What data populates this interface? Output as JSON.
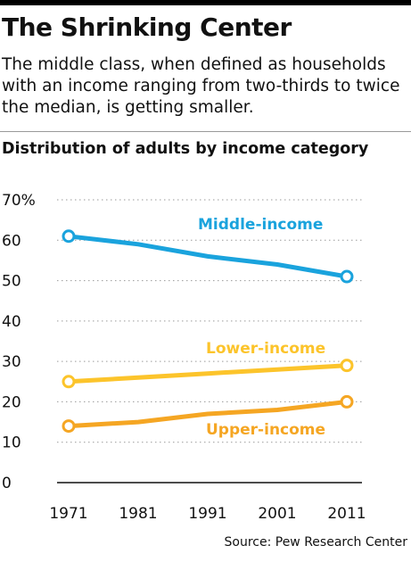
{
  "title": "The Shrinking Center",
  "subtitle": "The middle class, when defined as households with an income ranging from two-thirds to twice the median, is getting smaller.",
  "chart_title": "Distribution of adults by income category",
  "source": "Source: Pew Research Center",
  "chart_data": {
    "type": "line",
    "x": [
      1971,
      1981,
      1991,
      2001,
      2011
    ],
    "x_tick_labels": [
      "1971",
      "1981",
      "1991",
      "2001",
      "2011"
    ],
    "y_tick_labels": [
      "0",
      "10",
      "20",
      "30",
      "40",
      "50",
      "60",
      "70%"
    ],
    "y_ticks": [
      0,
      10,
      20,
      30,
      40,
      50,
      60,
      70
    ],
    "ylim": [
      0,
      70
    ],
    "grid": "dotted horizontal",
    "series": [
      {
        "name": "Middle-income",
        "values": [
          61,
          59,
          56,
          54,
          51
        ],
        "color": "#1aa3dd"
      },
      {
        "name": "Lower-income",
        "values": [
          25,
          26,
          27,
          28,
          29
        ],
        "color": "#fcc42b"
      },
      {
        "name": "Upper-income",
        "values": [
          14,
          15,
          17,
          18,
          20
        ],
        "color": "#f5a623"
      }
    ]
  }
}
